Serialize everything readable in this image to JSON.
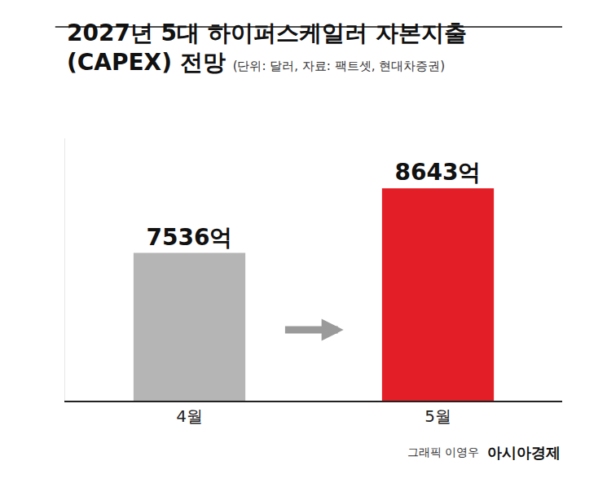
{
  "chart_data": {
    "type": "bar",
    "title": "2027년 5대 하이퍼스케일러 자본지출 (CAPEX) 전망",
    "subtitle": "(단위: 달러, 자료: 팩트셋, 현대차증권)",
    "categories": [
      "4월",
      "5월"
    ],
    "values": [
      7536,
      8643
    ],
    "value_labels": [
      "7536억",
      "8643억"
    ],
    "colors": [
      "#b5b5b5",
      "#e31e26"
    ],
    "ylim": [
      5000,
      9500
    ],
    "data_labels": true,
    "tick_labels": "x",
    "grid": false,
    "annotations": [
      "그래픽 이영우",
      "아시아경제"
    ]
  }
}
